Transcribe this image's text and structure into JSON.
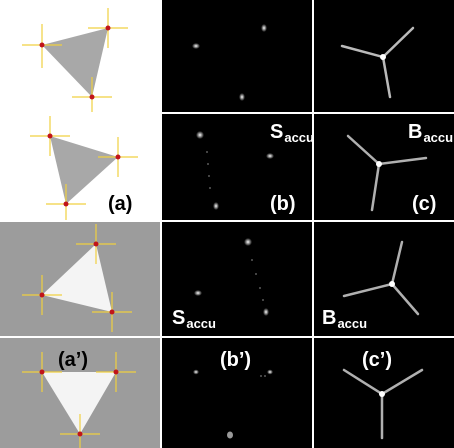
{
  "labels": {
    "a": "(a)",
    "b": "(b)",
    "c": "(c)",
    "a_prime": "(a’)",
    "b_prime": "(b’)",
    "c_prime": "(c’)",
    "s_main": "S",
    "s_sub": "accu",
    "b_main": "B",
    "b_sub": "accu"
  },
  "colors": {
    "accent_cross": "#f0d040",
    "corner_dot": "#c0141a",
    "triangle_gray": "#a8a8a8",
    "triangle_white": "#f4f4f4",
    "bg_gray": "#9c9c9c",
    "panel_black": "#000000"
  }
}
